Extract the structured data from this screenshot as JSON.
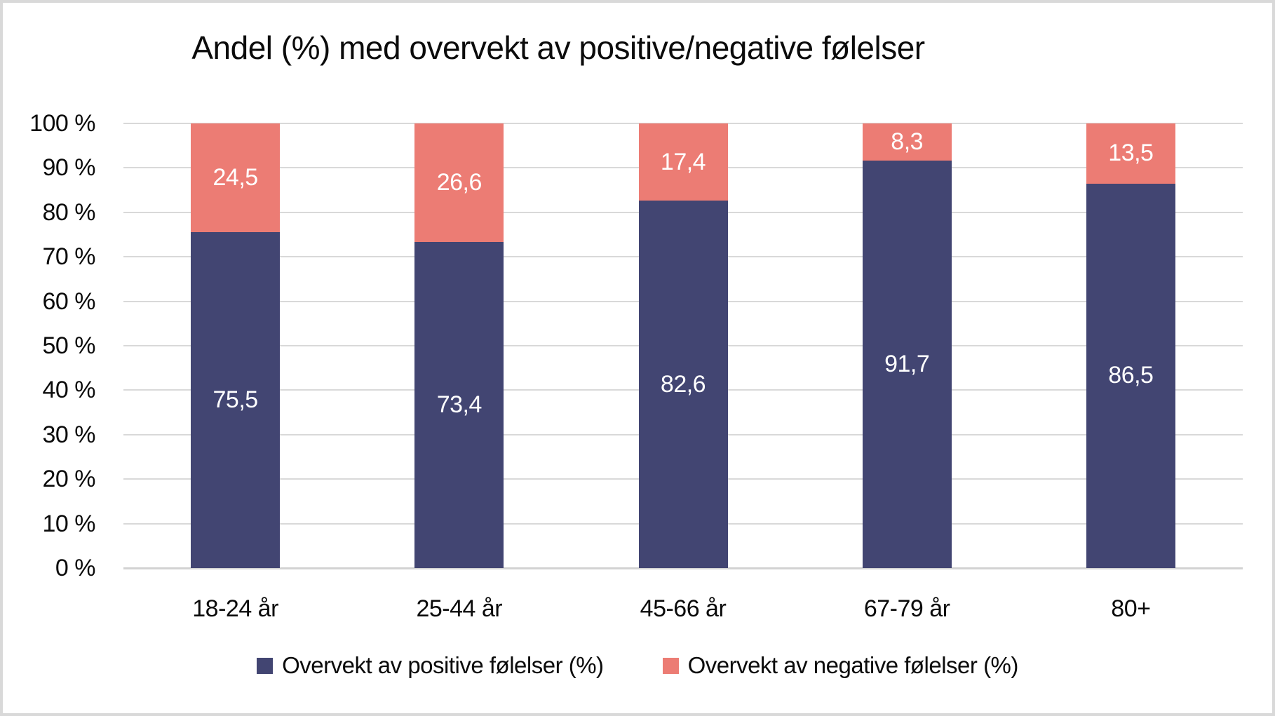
{
  "title": "Andel (%) med overvekt av positive/negative følelser",
  "colors": {
    "positive": "#424572",
    "negative": "#ec7c74",
    "gridline": "#d9d9d9",
    "zero_line": "#d3d3d3",
    "frame_border": "#d9d9d9",
    "background": "#ffffff",
    "text": "#0b0b0b",
    "bar_label": "#ffffff"
  },
  "chart_data": {
    "type": "bar",
    "stacked": true,
    "grid": true,
    "title": "Andel (%) med overvekt av positive/negative følelser",
    "xlabel": "",
    "ylabel": "",
    "categories": [
      "18-24 år",
      "25-44 år",
      "45-66 år",
      "67-79 år",
      "80+"
    ],
    "series": [
      {
        "name": "Overvekt av positive følelser (%)",
        "color_key": "positive",
        "values": [
          75.5,
          73.4,
          82.6,
          91.7,
          86.5
        ],
        "labels": [
          "75,5",
          "73,4",
          "82,6",
          "91,7",
          "86,5"
        ]
      },
      {
        "name": "Overvekt av negative følelser (%)",
        "color_key": "negative",
        "values": [
          24.5,
          26.6,
          17.4,
          8.3,
          13.5
        ],
        "labels": [
          "24,5",
          "26,6",
          "17,4",
          "8,3",
          "13,5"
        ]
      }
    ],
    "y_axis": {
      "min": 0,
      "max": 100,
      "step": 10,
      "tick_labels": [
        "0 %",
        "10 %",
        "20 %",
        "30 %",
        "40 %",
        "50 %",
        "60 %",
        "70 %",
        "80 %",
        "90 %",
        "100 %"
      ]
    },
    "legend": {
      "position": "bottom",
      "items": [
        "Overvekt av positive følelser (%)",
        "Overvekt av negative følelser (%)"
      ]
    }
  }
}
